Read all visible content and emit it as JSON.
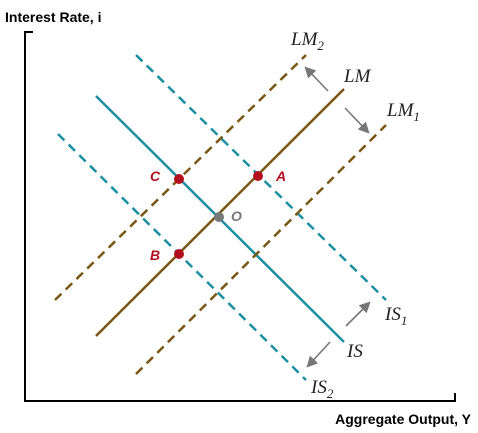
{
  "axes": {
    "y_title": "Interest Rate, i",
    "x_title": "Aggregate Output, Y"
  },
  "curves": {
    "lm": {
      "name": "LM",
      "sub": ""
    },
    "lm2": {
      "name": "LM",
      "sub": "2"
    },
    "lm1": {
      "name": "LM",
      "sub": "1"
    },
    "is": {
      "name": "IS",
      "sub": ""
    },
    "is1": {
      "name": "IS",
      "sub": "1"
    },
    "is2": {
      "name": "IS",
      "sub": "2"
    }
  },
  "points": {
    "a": "A",
    "b": "B",
    "c": "C",
    "o": "O"
  },
  "colors": {
    "lm": "#7a5614",
    "is": "#1b8fa0",
    "point_red": "#b3101f",
    "point_gray": "#777777",
    "arrow": "#777777",
    "axis": "#000000"
  }
}
